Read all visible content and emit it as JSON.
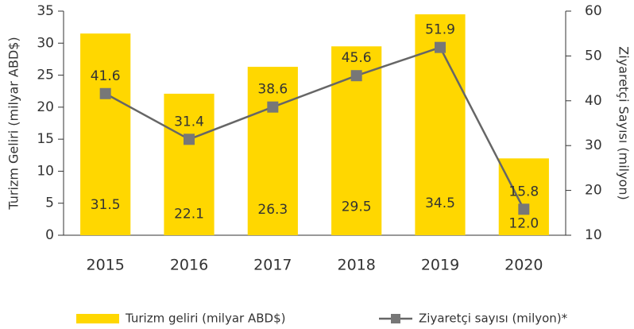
{
  "chart_data": {
    "type": "bar",
    "categories": [
      "2015",
      "2016",
      "2017",
      "2018",
      "2019",
      "2020"
    ],
    "series": [
      {
        "name": "Turizm geliri (milyar ABD$)",
        "type": "bar",
        "color": "#ffd700",
        "values": [
          31.5,
          22.1,
          26.3,
          29.5,
          34.5,
          12
        ],
        "value_labels": [
          "31.5",
          "22.1",
          "26.3",
          "29.5",
          "34.5",
          "12.0"
        ]
      },
      {
        "name": "Ziyaretçi sayısı (milyon)*",
        "type": "line",
        "axis": "y2",
        "color": "#666666",
        "values": [
          41.6,
          31.4,
          38.6,
          45.6,
          51.9,
          15.8
        ]
      }
    ],
    "ylabel": "Turizm Geliri (milyar ABD$)",
    "y2label": "Ziyaretçi Sayısı (milyon)",
    "ylim": [
      0,
      35
    ],
    "yticks": [
      0,
      5,
      10,
      15,
      20,
      25,
      30,
      35
    ],
    "y2lim": [
      10,
      60
    ],
    "y2ticks": [
      10,
      20,
      30,
      40,
      50,
      60
    ],
    "legend": "bottom"
  }
}
